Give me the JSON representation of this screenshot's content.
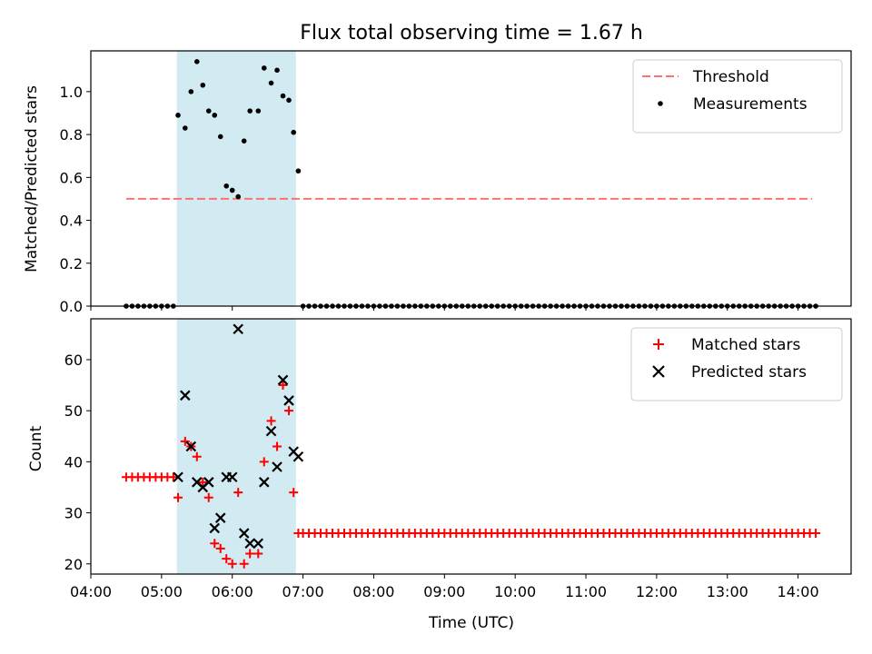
{
  "chart_data": [
    {
      "type": "scatter",
      "title": "Flux total observing time = 1.67 h",
      "xlabel": "",
      "ylabel": "Matched/Predicted stars",
      "ylim": [
        0,
        1.19
      ],
      "xlim": [
        "04:00",
        "14:45"
      ],
      "yticks": [
        "0.0",
        "0.2",
        "0.4",
        "0.6",
        "0.8",
        "1.0"
      ],
      "grid": false,
      "legend_position": "top-right",
      "shaded_interval": {
        "start": "05:13",
        "end": "06:54",
        "color": "#add8e6"
      },
      "threshold": {
        "name": "Threshold",
        "value": 0.5,
        "x": [
          "04:30",
          "14:12"
        ],
        "color": "#ff7070",
        "style": "dashed"
      },
      "series": [
        {
          "name": "Measurements",
          "color": "#000000",
          "marker": "dot",
          "points": [
            [
              "04:30",
              0
            ],
            [
              "04:35",
              0
            ],
            [
              "04:40",
              0
            ],
            [
              "04:45",
              0
            ],
            [
              "04:50",
              0
            ],
            [
              "04:55",
              0
            ],
            [
              "05:00",
              0
            ],
            [
              "05:05",
              0
            ],
            [
              "05:10",
              0
            ],
            [
              "05:14",
              0.89
            ],
            [
              "05:20",
              0.83
            ],
            [
              "05:25",
              1.0
            ],
            [
              "05:30",
              1.14
            ],
            [
              "05:35",
              1.03
            ],
            [
              "05:40",
              0.91
            ],
            [
              "05:45",
              0.89
            ],
            [
              "05:50",
              0.79
            ],
            [
              "05:55",
              0.56
            ],
            [
              "06:00",
              0.54
            ],
            [
              "06:05",
              0.51
            ],
            [
              "06:10",
              0.77
            ],
            [
              "06:15",
              0.91
            ],
            [
              "06:22",
              0.91
            ],
            [
              "06:27",
              1.11
            ],
            [
              "06:33",
              1.04
            ],
            [
              "06:38",
              1.1
            ],
            [
              "06:43",
              0.98
            ],
            [
              "06:48",
              0.96
            ],
            [
              "06:52",
              0.81
            ],
            [
              "06:56",
              0.63
            ],
            [
              "07:00",
              0
            ],
            [
              "07:05",
              0
            ],
            [
              "07:10",
              0
            ],
            [
              "07:15",
              0
            ],
            [
              "07:20",
              0
            ],
            [
              "07:25",
              0
            ],
            [
              "07:30",
              0
            ],
            [
              "07:35",
              0
            ],
            [
              "07:40",
              0
            ],
            [
              "07:45",
              0
            ],
            [
              "07:50",
              0
            ],
            [
              "07:55",
              0
            ],
            [
              "08:00",
              0
            ],
            [
              "08:05",
              0
            ],
            [
              "08:10",
              0
            ],
            [
              "08:15",
              0
            ],
            [
              "08:20",
              0
            ],
            [
              "08:25",
              0
            ],
            [
              "08:30",
              0
            ],
            [
              "08:35",
              0
            ],
            [
              "08:40",
              0
            ],
            [
              "08:45",
              0
            ],
            [
              "08:50",
              0
            ],
            [
              "08:55",
              0
            ],
            [
              "09:00",
              0
            ],
            [
              "09:05",
              0
            ],
            [
              "09:10",
              0
            ],
            [
              "09:15",
              0
            ],
            [
              "09:20",
              0
            ],
            [
              "09:25",
              0
            ],
            [
              "09:30",
              0
            ],
            [
              "09:35",
              0
            ],
            [
              "09:40",
              0
            ],
            [
              "09:45",
              0
            ],
            [
              "09:50",
              0
            ],
            [
              "09:55",
              0
            ],
            [
              "10:00",
              0
            ],
            [
              "10:05",
              0
            ],
            [
              "10:10",
              0
            ],
            [
              "10:15",
              0
            ],
            [
              "10:20",
              0
            ],
            [
              "10:25",
              0
            ],
            [
              "10:30",
              0
            ],
            [
              "10:35",
              0
            ],
            [
              "10:40",
              0
            ],
            [
              "10:45",
              0
            ],
            [
              "10:50",
              0
            ],
            [
              "10:55",
              0
            ],
            [
              "11:00",
              0
            ],
            [
              "11:05",
              0
            ],
            [
              "11:10",
              0
            ],
            [
              "11:15",
              0
            ],
            [
              "11:20",
              0
            ],
            [
              "11:25",
              0
            ],
            [
              "11:30",
              0
            ],
            [
              "11:35",
              0
            ],
            [
              "11:40",
              0
            ],
            [
              "11:45",
              0
            ],
            [
              "11:50",
              0
            ],
            [
              "11:55",
              0
            ],
            [
              "12:00",
              0
            ],
            [
              "12:05",
              0
            ],
            [
              "12:10",
              0
            ],
            [
              "12:15",
              0
            ],
            [
              "12:20",
              0
            ],
            [
              "12:25",
              0
            ],
            [
              "12:30",
              0
            ],
            [
              "12:35",
              0
            ],
            [
              "12:40",
              0
            ],
            [
              "12:45",
              0
            ],
            [
              "12:50",
              0
            ],
            [
              "12:55",
              0
            ],
            [
              "13:00",
              0
            ],
            [
              "13:05",
              0
            ],
            [
              "13:10",
              0
            ],
            [
              "13:15",
              0
            ],
            [
              "13:20",
              0
            ],
            [
              "13:25",
              0
            ],
            [
              "13:30",
              0
            ],
            [
              "13:35",
              0
            ],
            [
              "13:40",
              0
            ],
            [
              "13:45",
              0
            ],
            [
              "13:50",
              0
            ],
            [
              "13:55",
              0
            ],
            [
              "14:00",
              0
            ],
            [
              "14:05",
              0
            ],
            [
              "14:10",
              0
            ],
            [
              "14:15",
              0
            ]
          ]
        }
      ]
    },
    {
      "type": "scatter",
      "title": "",
      "xlabel": "Time (UTC)",
      "ylabel": "Count",
      "ylim": [
        18,
        68
      ],
      "xlim": [
        "04:00",
        "14:45"
      ],
      "yticks": [
        "20",
        "30",
        "40",
        "50",
        "60"
      ],
      "xticks": [
        "04:00",
        "05:00",
        "06:00",
        "07:00",
        "08:00",
        "09:00",
        "10:00",
        "11:00",
        "12:00",
        "13:00",
        "14:00"
      ],
      "grid": false,
      "legend_position": "top-right",
      "shaded_interval": {
        "start": "05:13",
        "end": "06:54",
        "color": "#add8e6"
      },
      "series": [
        {
          "name": "Matched stars",
          "color": "#ff0000",
          "marker": "plus",
          "points": [
            [
              "04:30",
              37
            ],
            [
              "04:35",
              37
            ],
            [
              "04:40",
              37
            ],
            [
              "04:45",
              37
            ],
            [
              "04:50",
              37
            ],
            [
              "04:55",
              37
            ],
            [
              "05:00",
              37
            ],
            [
              "05:05",
              37
            ],
            [
              "05:10",
              37
            ],
            [
              "05:14",
              33
            ],
            [
              "05:20",
              44
            ],
            [
              "05:25",
              43
            ],
            [
              "05:30",
              41
            ],
            [
              "05:35",
              36
            ],
            [
              "05:40",
              33
            ],
            [
              "05:45",
              24
            ],
            [
              "05:50",
              23
            ],
            [
              "05:55",
              21
            ],
            [
              "06:00",
              20
            ],
            [
              "06:05",
              34
            ],
            [
              "06:10",
              20
            ],
            [
              "06:15",
              22
            ],
            [
              "06:22",
              22
            ],
            [
              "06:27",
              40
            ],
            [
              "06:33",
              48
            ],
            [
              "06:38",
              43
            ],
            [
              "06:43",
              55
            ],
            [
              "06:48",
              50
            ],
            [
              "06:52",
              34
            ],
            [
              "06:56",
              26
            ],
            [
              "07:00",
              26
            ],
            [
              "07:05",
              26
            ],
            [
              "07:10",
              26
            ],
            [
              "07:15",
              26
            ],
            [
              "07:20",
              26
            ],
            [
              "07:25",
              26
            ],
            [
              "07:30",
              26
            ],
            [
              "07:35",
              26
            ],
            [
              "07:40",
              26
            ],
            [
              "07:45",
              26
            ],
            [
              "07:50",
              26
            ],
            [
              "07:55",
              26
            ],
            [
              "08:00",
              26
            ],
            [
              "08:05",
              26
            ],
            [
              "08:10",
              26
            ],
            [
              "08:15",
              26
            ],
            [
              "08:20",
              26
            ],
            [
              "08:25",
              26
            ],
            [
              "08:30",
              26
            ],
            [
              "08:35",
              26
            ],
            [
              "08:40",
              26
            ],
            [
              "08:45",
              26
            ],
            [
              "08:50",
              26
            ],
            [
              "08:55",
              26
            ],
            [
              "09:00",
              26
            ],
            [
              "09:05",
              26
            ],
            [
              "09:10",
              26
            ],
            [
              "09:15",
              26
            ],
            [
              "09:20",
              26
            ],
            [
              "09:25",
              26
            ],
            [
              "09:30",
              26
            ],
            [
              "09:35",
              26
            ],
            [
              "09:40",
              26
            ],
            [
              "09:45",
              26
            ],
            [
              "09:50",
              26
            ],
            [
              "09:55",
              26
            ],
            [
              "10:00",
              26
            ],
            [
              "10:05",
              26
            ],
            [
              "10:10",
              26
            ],
            [
              "10:15",
              26
            ],
            [
              "10:20",
              26
            ],
            [
              "10:25",
              26
            ],
            [
              "10:30",
              26
            ],
            [
              "10:35",
              26
            ],
            [
              "10:40",
              26
            ],
            [
              "10:45",
              26
            ],
            [
              "10:50",
              26
            ],
            [
              "10:55",
              26
            ],
            [
              "11:00",
              26
            ],
            [
              "11:05",
              26
            ],
            [
              "11:10",
              26
            ],
            [
              "11:15",
              26
            ],
            [
              "11:20",
              26
            ],
            [
              "11:25",
              26
            ],
            [
              "11:30",
              26
            ],
            [
              "11:35",
              26
            ],
            [
              "11:40",
              26
            ],
            [
              "11:45",
              26
            ],
            [
              "11:50",
              26
            ],
            [
              "11:55",
              26
            ],
            [
              "12:00",
              26
            ],
            [
              "12:05",
              26
            ],
            [
              "12:10",
              26
            ],
            [
              "12:15",
              26
            ],
            [
              "12:20",
              26
            ],
            [
              "12:25",
              26
            ],
            [
              "12:30",
              26
            ],
            [
              "12:35",
              26
            ],
            [
              "12:40",
              26
            ],
            [
              "12:45",
              26
            ],
            [
              "12:50",
              26
            ],
            [
              "12:55",
              26
            ],
            [
              "13:00",
              26
            ],
            [
              "13:05",
              26
            ],
            [
              "13:10",
              26
            ],
            [
              "13:15",
              26
            ],
            [
              "13:20",
              26
            ],
            [
              "13:25",
              26
            ],
            [
              "13:30",
              26
            ],
            [
              "13:35",
              26
            ],
            [
              "13:40",
              26
            ],
            [
              "13:45",
              26
            ],
            [
              "13:50",
              26
            ],
            [
              "13:55",
              26
            ],
            [
              "14:00",
              26
            ],
            [
              "14:05",
              26
            ],
            [
              "14:10",
              26
            ],
            [
              "14:15",
              26
            ]
          ]
        },
        {
          "name": "Predicted stars",
          "color": "#000000",
          "marker": "x",
          "points": [
            [
              "05:14",
              37
            ],
            [
              "05:20",
              53
            ],
            [
              "05:25",
              43
            ],
            [
              "05:30",
              36
            ],
            [
              "05:35",
              35
            ],
            [
              "05:40",
              36
            ],
            [
              "05:45",
              27
            ],
            [
              "05:50",
              29
            ],
            [
              "05:55",
              37
            ],
            [
              "06:00",
              37
            ],
            [
              "06:05",
              66
            ],
            [
              "06:10",
              26
            ],
            [
              "06:15",
              24
            ],
            [
              "06:22",
              24
            ],
            [
              "06:27",
              36
            ],
            [
              "06:33",
              46
            ],
            [
              "06:38",
              39
            ],
            [
              "06:43",
              56
            ],
            [
              "06:48",
              52
            ],
            [
              "06:52",
              42
            ],
            [
              "06:56",
              41
            ]
          ]
        }
      ]
    }
  ]
}
